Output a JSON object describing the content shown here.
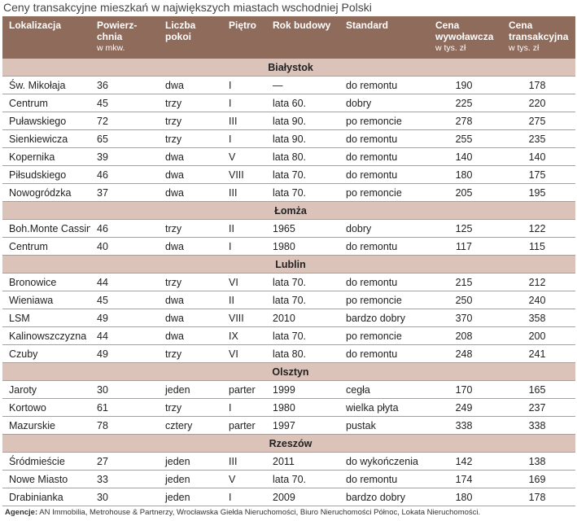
{
  "title": "Ceny transakcyjne mieszkań w największych miastach wschodniej Polski",
  "header": [
    {
      "title": "Lokalizacja"
    },
    {
      "title": "Powierz-chnia",
      "unit": "w mkw."
    },
    {
      "title": "Liczba pokoi"
    },
    {
      "title": "Piętro"
    },
    {
      "title": "Rok budowy"
    },
    {
      "title": "Standard"
    },
    {
      "title": "Cena wywoławcza",
      "unit": "w tys. zł"
    },
    {
      "title": "Cena transakcyjna",
      "unit": "w tys. zł"
    }
  ],
  "sections": [
    {
      "city": "Białystok",
      "rows": [
        [
          "Św. Mikołaja",
          "36",
          "dwa",
          "I",
          "—",
          "do remontu",
          "190",
          "178"
        ],
        [
          "Centrum",
          "45",
          "trzy",
          "I",
          "lata 60.",
          "dobry",
          "225",
          "220"
        ],
        [
          "Puławskiego",
          "72",
          "trzy",
          "III",
          "lata 90.",
          "po remoncie",
          "278",
          "275"
        ],
        [
          "Sienkiewicza",
          "65",
          "trzy",
          "I",
          "lata 90.",
          "do remontu",
          "255",
          "235"
        ],
        [
          "Kopernika",
          "39",
          "dwa",
          "V",
          "lata 80.",
          "do remontu",
          "140",
          "140"
        ],
        [
          "Piłsudskiego",
          "46",
          "dwa",
          "VIII",
          "lata 70.",
          "do remontu",
          "180",
          "175"
        ],
        [
          "Nowogródzka",
          "37",
          "dwa",
          "III",
          "lata 70.",
          "po remoncie",
          "205",
          "195"
        ]
      ]
    },
    {
      "city": "Łomża",
      "rows": [
        [
          "Boh.Monte Cassino",
          "46",
          "trzy",
          "II",
          "1965",
          "dobry",
          "125",
          "122"
        ],
        [
          "Centrum",
          "40",
          "dwa",
          "I",
          "1980",
          "do remontu",
          "117",
          "115"
        ]
      ]
    },
    {
      "city": "Lublin",
      "rows": [
        [
          "Bronowice",
          "44",
          "trzy",
          "VI",
          "lata 70.",
          "do remontu",
          "215",
          "212"
        ],
        [
          "Wieniawa",
          "45",
          "dwa",
          "II",
          "lata 70.",
          "po remoncie",
          "250",
          "240"
        ],
        [
          "LSM",
          "49",
          "dwa",
          "VIII",
          "2010",
          "bardzo dobry",
          "370",
          "358"
        ],
        [
          "Kalinowszczyzna",
          "44",
          "dwa",
          "IX",
          "lata 70.",
          "po remoncie",
          "208",
          "200"
        ],
        [
          "Czuby",
          "49",
          "trzy",
          "VI",
          "lata 80.",
          "do remontu",
          "248",
          "241"
        ]
      ]
    },
    {
      "city": "Olsztyn",
      "rows": [
        [
          "Jaroty",
          "30",
          "jeden",
          "parter",
          "1999",
          "cegła",
          "170",
          "165"
        ],
        [
          "Kortowo",
          "61",
          "trzy",
          "I",
          "1980",
          "wielka płyta",
          "249",
          "237"
        ],
        [
          "Mazurskie",
          "78",
          "cztery",
          "parter",
          "1997",
          "pustak",
          "338",
          "338"
        ]
      ]
    },
    {
      "city": "Rzeszów",
      "rows": [
        [
          "Śródmieście",
          "27",
          "jeden",
          "III",
          "2011",
          "do wykończenia",
          "142",
          "138"
        ],
        [
          "Nowe Miasto",
          "33",
          "jeden",
          "V",
          "lata 70.",
          "do remontu",
          "174",
          "169"
        ],
        [
          "Drabinianka",
          "30",
          "jeden",
          "I",
          "2009",
          "bardzo dobry",
          "180",
          "178"
        ]
      ]
    }
  ],
  "footer": {
    "label": "Agencje:",
    "text": "AN Immobilia, Metrohouse & Partnerzy, Wrocławska Giełda Nieruchomości, Biuro Nieruchomości Północ, Lokata Nieruchomości."
  }
}
